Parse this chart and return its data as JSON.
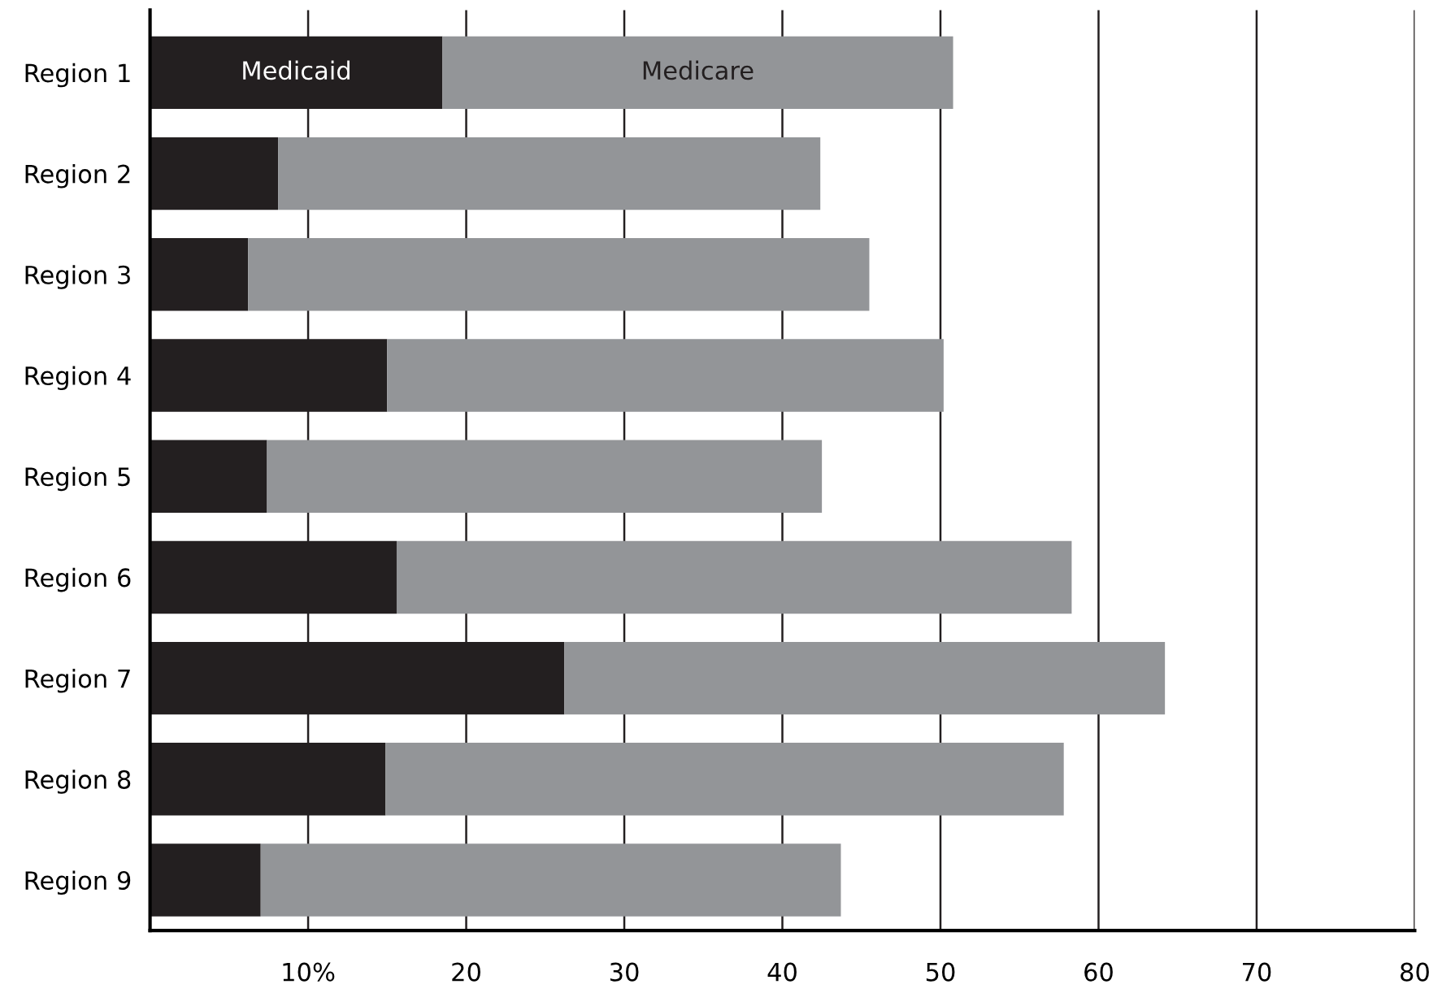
{
  "chart_data": {
    "type": "bar",
    "orientation": "horizontal",
    "stacked": true,
    "categories": [
      "Region 1",
      "Region 2",
      "Region 3",
      "Region 4",
      "Region 5",
      "Region 6",
      "Region 7",
      "Region 8",
      "Region 9"
    ],
    "series": [
      {
        "name": "Medicaid",
        "color": "#231f20",
        "values": [
          18.5,
          8.1,
          6.2,
          15.0,
          7.4,
          15.6,
          26.2,
          14.9,
          7.0
        ]
      },
      {
        "name": "Medicare",
        "color": "#939598",
        "values": [
          32.3,
          34.3,
          39.3,
          35.2,
          35.1,
          42.7,
          38.0,
          42.9,
          36.7
        ]
      }
    ],
    "xlim": [
      0,
      80
    ],
    "xticks": [
      {
        "value": 10,
        "label": "10%"
      },
      20,
      30,
      40,
      50,
      60,
      70,
      80
    ],
    "grid": "x",
    "legend": false
  }
}
